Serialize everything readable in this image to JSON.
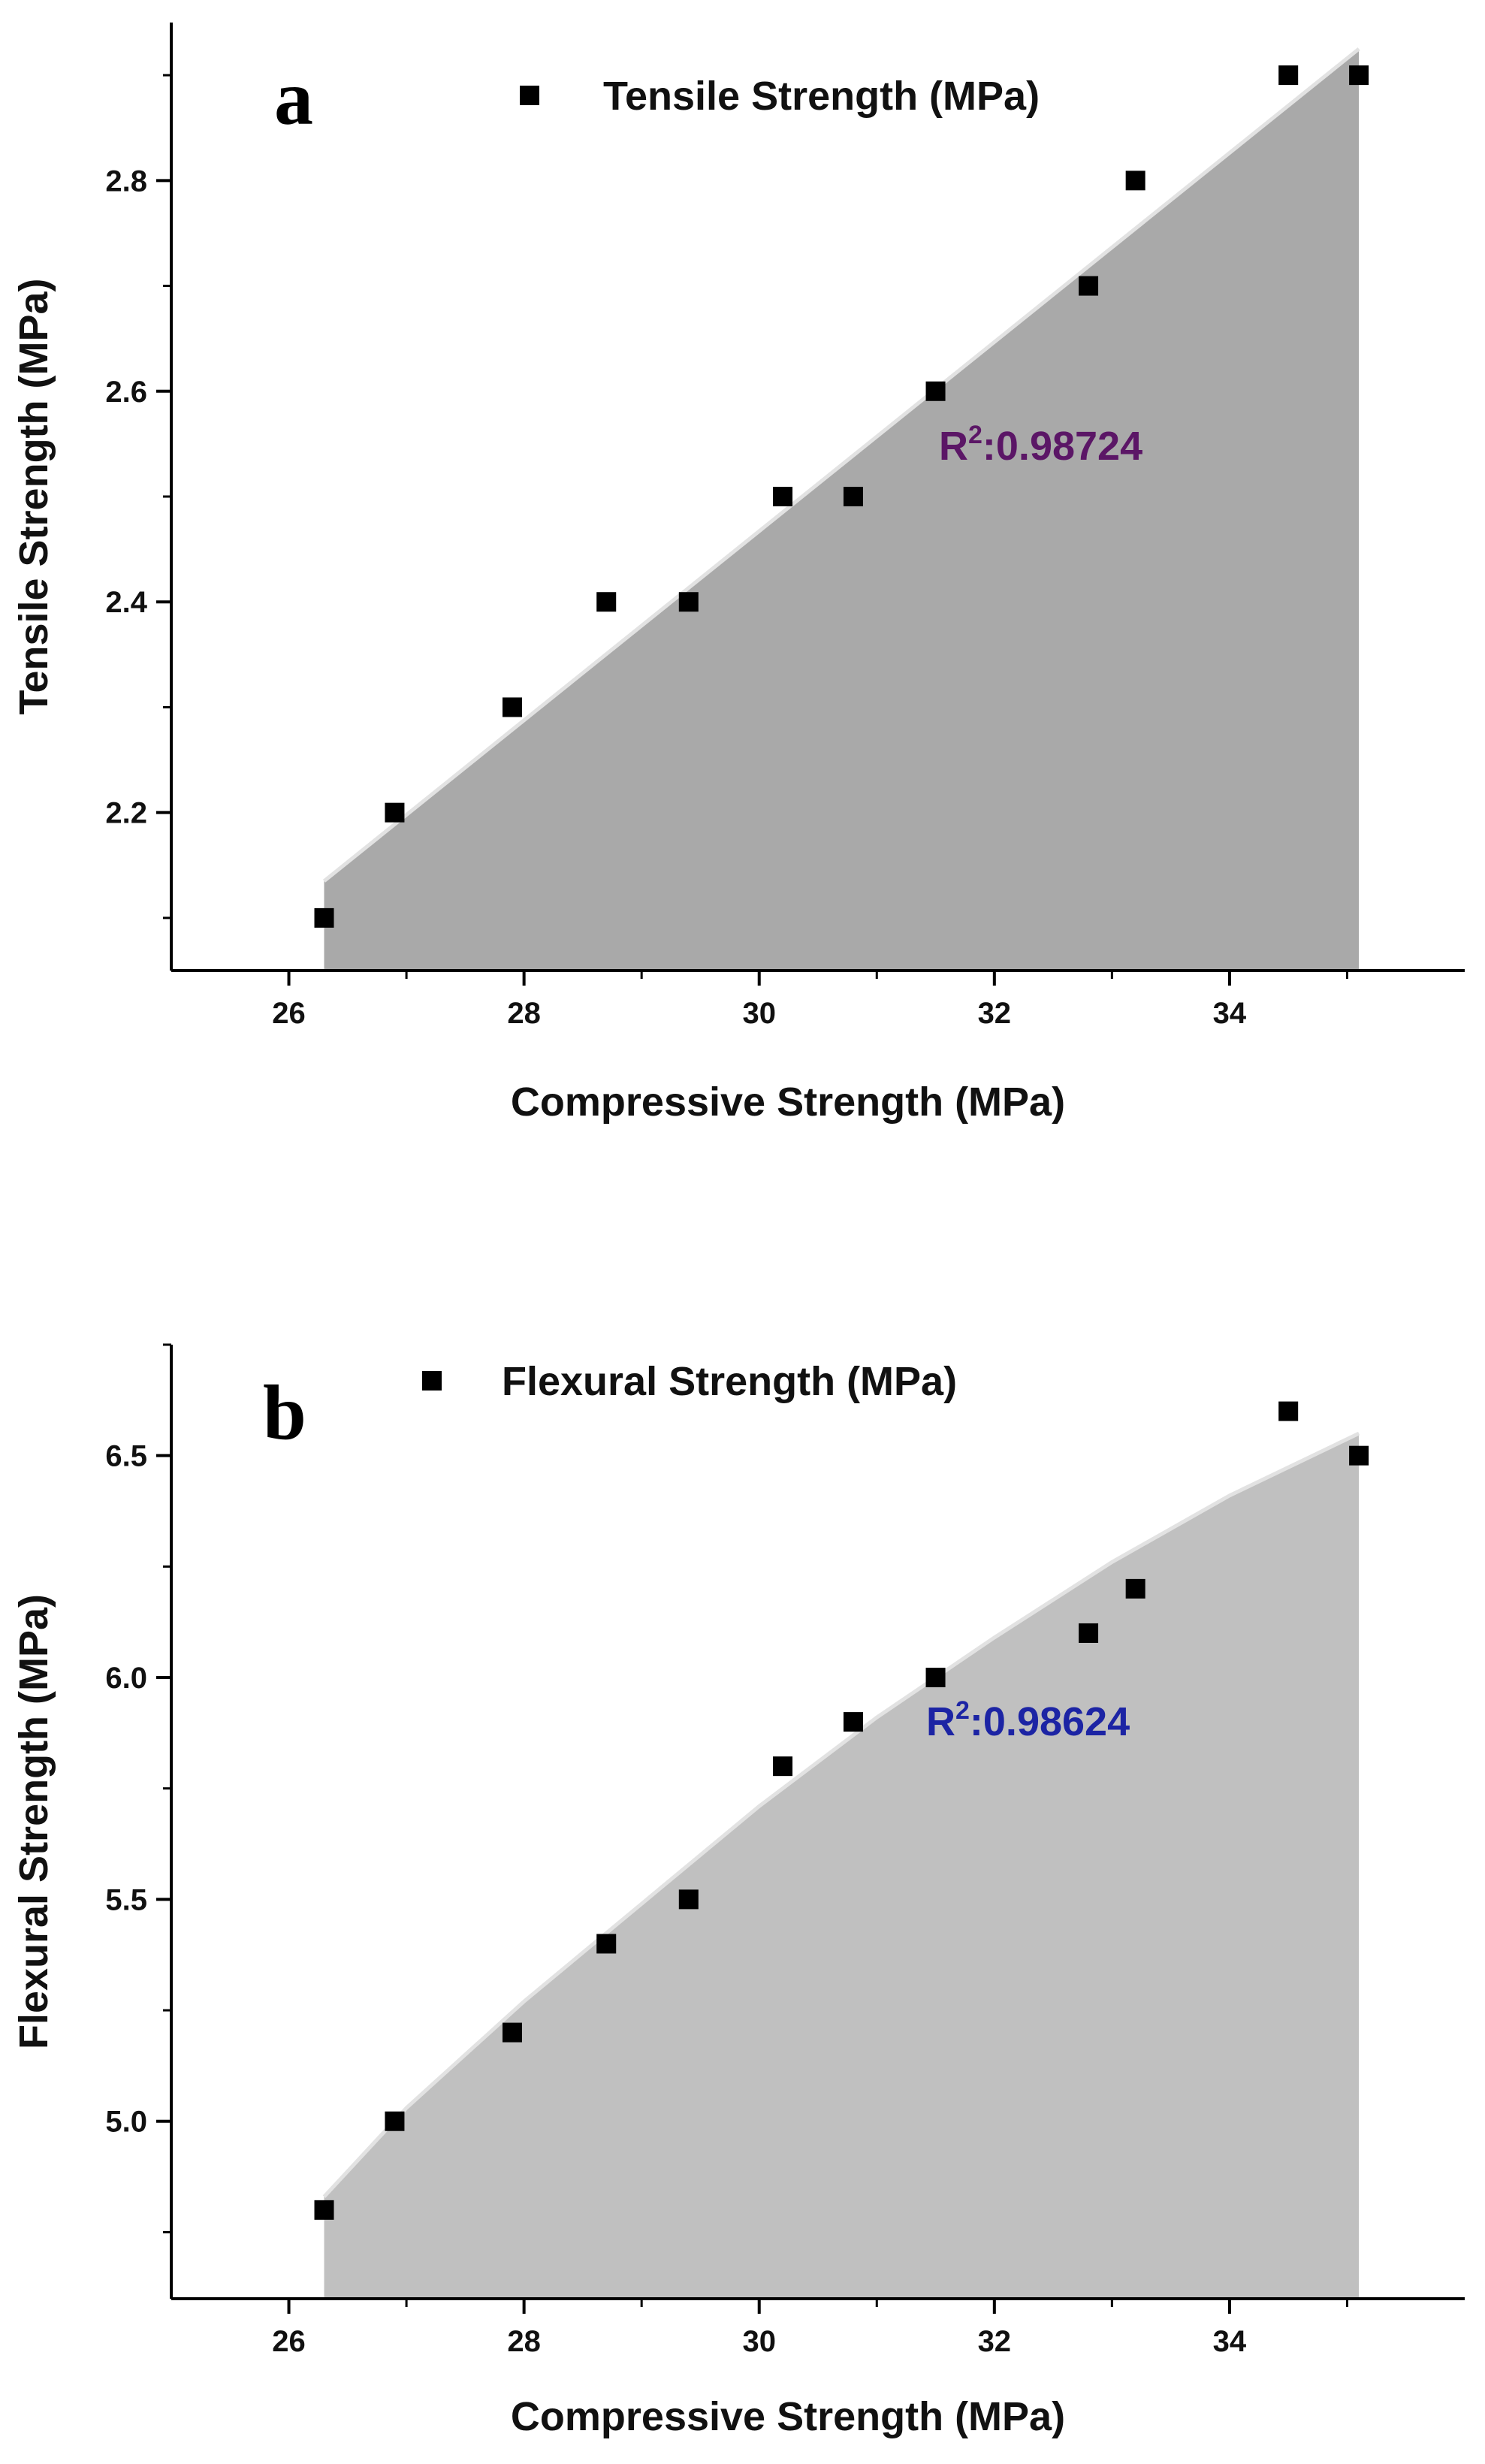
{
  "chart_data": [
    {
      "type": "scatter",
      "panel_label": "a",
      "title": "",
      "xlabel": "Compressive Strength (MPa)",
      "ylabel": "Tensile Strength (MPa)",
      "xlim": [
        25.0,
        36.0
      ],
      "ylim": [
        2.05,
        2.95
      ],
      "xticks": [
        26,
        28,
        30,
        32,
        34
      ],
      "xtick_labels": [
        "26",
        "28",
        "30",
        "32",
        "34"
      ],
      "yticks": [
        2.2,
        2.4,
        2.6,
        2.8
      ],
      "ytick_labels": [
        "2.2",
        "2.4",
        "2.6",
        "2.8"
      ],
      "grid": false,
      "legend": {
        "position": "top-center",
        "entries": [
          "Tensile Strength (MPa)"
        ]
      },
      "series": [
        {
          "name": "Tensile Strength (MPa)",
          "marker": "square",
          "color": "#000000",
          "x": [
            26.3,
            26.9,
            27.9,
            28.7,
            29.4,
            30.2,
            30.8,
            31.5,
            32.8,
            33.2,
            34.5,
            35.1
          ],
          "y": [
            2.1,
            2.2,
            2.3,
            2.4,
            2.4,
            2.5,
            2.5,
            2.6,
            2.7,
            2.8,
            2.9,
            2.9
          ]
        }
      ],
      "fit": {
        "kind": "linear",
        "x": [
          26.3,
          35.1
        ],
        "y": [
          2.135,
          2.925
        ],
        "fill_color": "#a9a9a9"
      },
      "annotations": [
        {
          "prefix": "R",
          "sup": "2",
          "text": ":0.98724",
          "color": "#5b1666"
        }
      ]
    },
    {
      "type": "scatter",
      "panel_label": "b",
      "title": "",
      "xlabel": "Compressive Strength (MPa)",
      "ylabel": "Flexural Strength (MPa)",
      "xlim": [
        25.0,
        36.0
      ],
      "ylim": [
        4.6,
        6.75
      ],
      "xticks": [
        26,
        28,
        30,
        32,
        34
      ],
      "xtick_labels": [
        "26",
        "28",
        "30",
        "32",
        "34"
      ],
      "yticks": [
        5.0,
        5.5,
        6.0,
        6.5
      ],
      "ytick_labels": [
        "5.0",
        "5.5",
        "6.0",
        "6.5"
      ],
      "grid": false,
      "legend": {
        "position": "top-center",
        "entries": [
          "Flexural Strength (MPa)"
        ]
      },
      "series": [
        {
          "name": "Flexural Strength (MPa)",
          "marker": "square",
          "color": "#000000",
          "x": [
            26.3,
            26.9,
            27.9,
            28.7,
            29.4,
            30.2,
            30.8,
            31.5,
            32.8,
            33.2,
            34.5,
            35.1
          ],
          "y": [
            4.8,
            5.0,
            5.2,
            5.4,
            5.5,
            5.8,
            5.9,
            6.0,
            6.1,
            6.2,
            6.6,
            6.5
          ]
        }
      ],
      "fit": {
        "kind": "curve",
        "x": [
          26.3,
          27.0,
          28.0,
          29.0,
          30.0,
          31.0,
          32.0,
          33.0,
          34.0,
          35.1
        ],
        "y": [
          4.83,
          5.03,
          5.27,
          5.49,
          5.71,
          5.91,
          6.09,
          6.26,
          6.41,
          6.55
        ],
        "fill_color": "#c0c0c0"
      },
      "annotations": [
        {
          "prefix": "R",
          "sup": "2",
          "text": ":0.98624",
          "color": "#1c24a4"
        }
      ]
    }
  ]
}
